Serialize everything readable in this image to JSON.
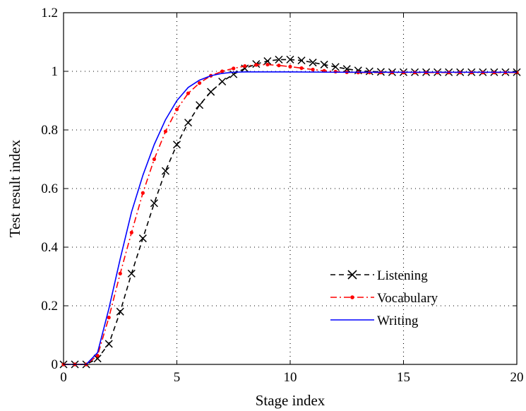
{
  "chart_data": {
    "type": "line",
    "title": "",
    "xlabel": "Stage index",
    "ylabel": "Test result index",
    "xlim": [
      0,
      20
    ],
    "ylim": [
      0,
      1.2
    ],
    "xticks": [
      "0",
      "5",
      "10",
      "15",
      "20"
    ],
    "yticks": [
      "0",
      "0.2",
      "0.4",
      "0.6",
      "0.8",
      "1",
      "1.2"
    ],
    "grid": "dotted",
    "legend_position": "lower-right",
    "series": [
      {
        "name": "Listening",
        "color": "#000000",
        "line": "dashed",
        "marker": "x",
        "x": [
          0,
          0.5,
          1,
          1.5,
          2,
          2.5,
          3,
          3.5,
          4,
          4.5,
          5,
          5.5,
          6,
          6.5,
          7,
          7.5,
          8,
          8.5,
          9,
          9.5,
          10,
          10.5,
          11,
          11.5,
          12,
          12.5,
          13,
          13.5,
          14,
          14.5,
          15,
          15.5,
          16,
          16.5,
          17,
          17.5,
          18,
          18.5,
          19,
          19.5,
          20
        ],
        "y": [
          0,
          0,
          0,
          0.02,
          0.07,
          0.18,
          0.31,
          0.43,
          0.55,
          0.66,
          0.75,
          0.825,
          0.885,
          0.93,
          0.965,
          0.99,
          1.01,
          1.025,
          1.035,
          1.04,
          1.04,
          1.037,
          1.03,
          1.023,
          1.015,
          1.008,
          1.003,
          1.0,
          0.998,
          0.997,
          0.997,
          0.997,
          0.997,
          0.997,
          0.997,
          0.997,
          0.997,
          0.997,
          0.997,
          0.997,
          0.997
        ]
      },
      {
        "name": "Vocabulary",
        "color": "#ff0000",
        "line": "dashdot",
        "marker": "dot",
        "x": [
          0,
          0.5,
          1,
          1.5,
          2,
          2.5,
          3,
          3.5,
          4,
          4.5,
          5,
          5.5,
          6,
          6.5,
          7,
          7.5,
          8,
          8.5,
          9,
          9.5,
          10,
          10.5,
          11,
          11.5,
          12,
          12.5,
          13,
          13.5,
          14,
          14.5,
          15,
          15.5,
          16,
          16.5,
          17,
          17.5,
          18,
          18.5,
          19,
          19.5,
          20
        ],
        "y": [
          0,
          0,
          0,
          0.03,
          0.16,
          0.31,
          0.45,
          0.585,
          0.7,
          0.795,
          0.87,
          0.925,
          0.96,
          0.985,
          1.0,
          1.01,
          1.018,
          1.022,
          1.023,
          1.02,
          1.016,
          1.011,
          1.006,
          1.002,
          0.999,
          0.997,
          0.996,
          0.996,
          0.996,
          0.996,
          0.996,
          0.996,
          0.996,
          0.996,
          0.996,
          0.996,
          0.996,
          0.996,
          0.996,
          0.996,
          0.996
        ]
      },
      {
        "name": "Writing",
        "color": "#0000ff",
        "line": "solid",
        "marker": "none",
        "x": [
          0,
          0.5,
          1,
          1.5,
          2,
          2.5,
          3,
          3.5,
          4,
          4.5,
          5,
          5.5,
          6,
          6.5,
          7,
          7.5,
          8,
          9,
          10,
          12,
          14,
          16,
          18,
          20
        ],
        "y": [
          0,
          0,
          0,
          0.04,
          0.19,
          0.36,
          0.52,
          0.645,
          0.75,
          0.835,
          0.9,
          0.945,
          0.97,
          0.985,
          0.993,
          0.997,
          0.998,
          0.998,
          0.998,
          0.997,
          0.997,
          0.997,
          0.997,
          0.997
        ]
      }
    ]
  }
}
